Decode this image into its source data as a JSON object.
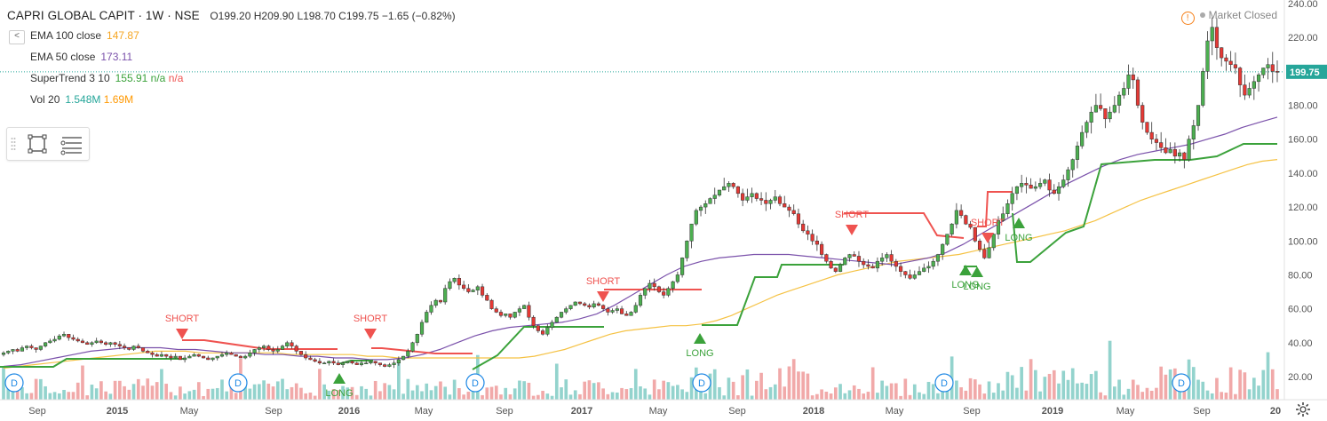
{
  "header": {
    "title": "CAPRI GLOBAL CAPIT · 1W · NSE",
    "open_label": "O",
    "open": "199.20",
    "high_label": "H",
    "high": "209.90",
    "low_label": "L",
    "low": "198.70",
    "close_label": "C",
    "close": "199.75",
    "change": "−1.65 (−0.82%)"
  },
  "indicators": [
    {
      "name": "EMA 100 close",
      "value": "147.87",
      "color": "#f5a623"
    },
    {
      "name": "EMA 50 close",
      "value": "173.11",
      "color": "#7b52ab"
    },
    {
      "name": "SuperTrend 3 10",
      "value": "155.91",
      "extra": "n/a",
      "extra2": "n/a",
      "color": "#3ba23b",
      "color2": "#ef5350"
    },
    {
      "name": "Vol 20",
      "value": "1.548M",
      "value2": "1.69M",
      "color": "#26a69a",
      "color2": "#ff9800"
    }
  ],
  "collapse_label": "<",
  "status": {
    "text": "Market Closed"
  },
  "colors": {
    "up": "#26a69a",
    "down": "#ef5350",
    "candle_up": "#4caf50",
    "candle_down": "#e53935",
    "ema100": "#f5c244",
    "ema50": "#7b52ab",
    "st_up": "#3ba23b",
    "st_down": "#ef5350"
  },
  "icons": [
    "rectangle-tool-icon",
    "text-lines-tool-icon",
    "settings-gear-icon",
    "warning-icon",
    "dividend-marker-icon"
  ],
  "chart_data": {
    "type": "candlestick",
    "symbol": "CAPRI GLOBAL CAPIT",
    "interval": "1W",
    "exchange": "NSE",
    "ylim": [
      10,
      240
    ],
    "y_ticks": [
      20,
      40,
      60,
      80,
      100,
      120,
      140,
      160,
      180,
      200,
      220,
      240
    ],
    "x_ticks": [
      "Sep",
      "2015",
      "May",
      "Sep",
      "2016",
      "May",
      "Sep",
      "2017",
      "May",
      "Sep",
      "2018",
      "May",
      "Sep",
      "2019",
      "May",
      "Sep",
      "20"
    ],
    "last_price_label": "199.75",
    "close_series": [
      34,
      35,
      36,
      35,
      37,
      38,
      37,
      36,
      38,
      40,
      41,
      42,
      44,
      45,
      43,
      42,
      41,
      40,
      39,
      40,
      41,
      40,
      39,
      40,
      39,
      38,
      37,
      36,
      38,
      37,
      35,
      34,
      33,
      32,
      33,
      32,
      31,
      32,
      30,
      31,
      32,
      33,
      32,
      31,
      30,
      31,
      32,
      33,
      34,
      33,
      32,
      31,
      32,
      34,
      36,
      37,
      38,
      36,
      35,
      36,
      38,
      40,
      38,
      35,
      33,
      31,
      30,
      29,
      28,
      28,
      29,
      28,
      27,
      28,
      29,
      28,
      27,
      28,
      28,
      29,
      28,
      27,
      26,
      27,
      28,
      30,
      32,
      35,
      40,
      45,
      52,
      58,
      62,
      65,
      64,
      72,
      76,
      78,
      74,
      72,
      70,
      71,
      73,
      68,
      65,
      60,
      58,
      56,
      57,
      55,
      58,
      60,
      62,
      55,
      50,
      47,
      45,
      49,
      52,
      55,
      58,
      60,
      62,
      64,
      63,
      62,
      61,
      63,
      62,
      60,
      58,
      59,
      60,
      57,
      56,
      58,
      62,
      68,
      72,
      75,
      73,
      70,
      68,
      72,
      76,
      80,
      90,
      100,
      110,
      118,
      120,
      122,
      125,
      127,
      130,
      132,
      134,
      132,
      128,
      124,
      126,
      128,
      125,
      124,
      122,
      124,
      126,
      122,
      120,
      118,
      116,
      110,
      106,
      104,
      100,
      98,
      92,
      88,
      84,
      82,
      86,
      90,
      92,
      91,
      88,
      86,
      85,
      84,
      88,
      90,
      92,
      88,
      85,
      82,
      80,
      78,
      80,
      82,
      84,
      85,
      88,
      92,
      98,
      104,
      110,
      118,
      115,
      110,
      108,
      100,
      95,
      90,
      96,
      104,
      112,
      116,
      122,
      128,
      132,
      134,
      133,
      131,
      132,
      134,
      136,
      130,
      128,
      132,
      136,
      142,
      148,
      156,
      164,
      170,
      176,
      180,
      178,
      172,
      176,
      180,
      186,
      190,
      198,
      195,
      180,
      170,
      164,
      160,
      158,
      155,
      152,
      154,
      150,
      152,
      148,
      160,
      168,
      180,
      200,
      218,
      226,
      214,
      208,
      206,
      204,
      202,
      192,
      186,
      190,
      194,
      198,
      202,
      204,
      200,
      199.75
    ],
    "ema100_series": [
      25,
      26,
      27,
      28,
      29,
      30,
      31,
      32,
      33,
      34,
      35,
      35,
      35,
      34,
      34,
      34,
      34,
      34,
      34,
      33,
      33,
      33,
      33,
      33,
      32,
      32,
      31,
      31,
      31,
      31,
      31,
      31,
      31,
      31,
      31,
      32,
      34,
      36,
      39,
      42,
      45,
      47,
      48,
      49,
      50,
      50,
      51,
      53,
      56,
      60,
      64,
      68,
      71,
      74,
      77,
      80,
      82,
      84,
      86,
      88,
      89,
      90,
      91,
      92,
      94,
      96,
      98,
      100,
      102,
      104,
      106,
      109,
      112,
      116,
      120,
      124,
      127,
      130,
      133,
      136,
      139,
      142,
      145,
      147,
      148
    ],
    "ema50_series": [
      26,
      27,
      29,
      31,
      33,
      35,
      36,
      37,
      37,
      37,
      36,
      36,
      35,
      34,
      34,
      33,
      33,
      32,
      32,
      31,
      31,
      30,
      30,
      31,
      33,
      36,
      40,
      44,
      47,
      49,
      50,
      51,
      52,
      54,
      57,
      62,
      68,
      74,
      80,
      85,
      88,
      90,
      91,
      92,
      92,
      92,
      91,
      90,
      89,
      88,
      87,
      86,
      88,
      90,
      93,
      98,
      104,
      110,
      116,
      122,
      128,
      134,
      139,
      144,
      148,
      151,
      153,
      155,
      157,
      160,
      163,
      167,
      170,
      173
    ],
    "supertrend_segments": "step line alternating green (up-trend support) and red (down-trend resistance)",
    "signals": [
      {
        "label": "SHORT",
        "type": "short"
      },
      {
        "label": "LONG",
        "type": "long"
      },
      {
        "label": "SHORT",
        "type": "short"
      },
      {
        "label": "SHORT",
        "type": "short"
      },
      {
        "label": "LONG",
        "type": "long"
      },
      {
        "label": "SHORT",
        "type": "short"
      },
      {
        "label": "LONG",
        "type": "long"
      },
      {
        "label": "SHORT",
        "type": "short"
      },
      {
        "label": "LONG",
        "type": "long"
      },
      {
        "label": "LONG",
        "type": "long"
      }
    ],
    "dividend_marker_label": "D",
    "dividend_count": 6
  }
}
